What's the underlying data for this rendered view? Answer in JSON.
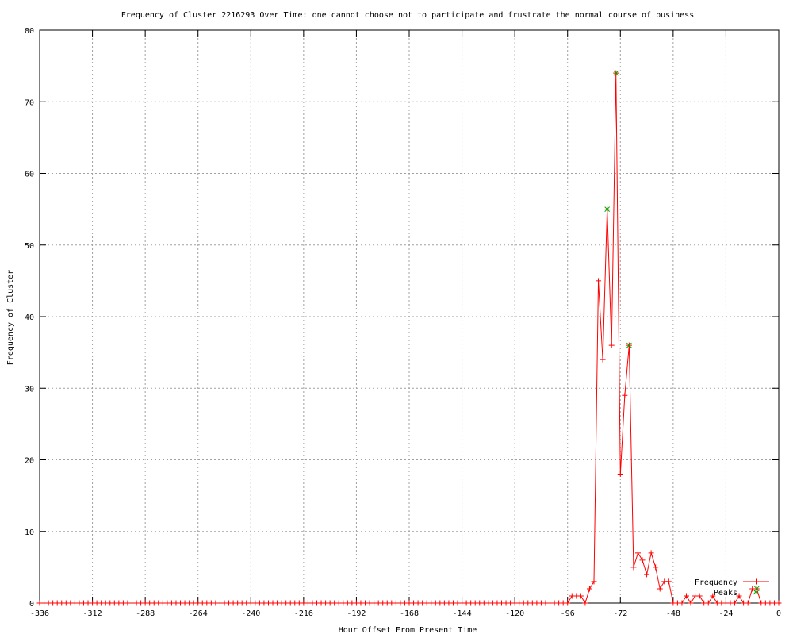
{
  "chart_data": {
    "type": "line",
    "title": "Frequency of Cluster 2216293 Over Time: one cannot choose not to participate and frustrate the normal course of business",
    "xlabel": "Hour Offset From Present Time",
    "ylabel": "Frequency of Cluster",
    "xlim": [
      -336,
      0
    ],
    "ylim": [
      0,
      80
    ],
    "xticks": [
      -336,
      -312,
      -288,
      -264,
      -240,
      -216,
      -192,
      -168,
      -144,
      -120,
      -96,
      -72,
      -48,
      -24,
      0
    ],
    "yticks": [
      0,
      10,
      20,
      30,
      40,
      50,
      60,
      70,
      80
    ],
    "grid": true,
    "legend_position": "bottom-right",
    "series": [
      {
        "name": "Frequency",
        "color": "#ff0000",
        "nonzero": {
          "-94": 1,
          "-92": 1,
          "-90": 1,
          "-86": 2,
          "-84": 3,
          "-82": 45,
          "-80": 34,
          "-78": 55,
          "-76": 36,
          "-74": 74,
          "-72": 18,
          "-70": 29,
          "-68": 36,
          "-66": 5,
          "-64": 7,
          "-62": 6,
          "-60": 4,
          "-58": 7,
          "-56": 5,
          "-54": 2,
          "-52": 3,
          "-50": 3,
          "-42": 1,
          "-38": 1,
          "-36": 1,
          "-30": 1,
          "-18": 1,
          "-12": 2,
          "-10": 2
        },
        "x_start": -336,
        "x_end": 0,
        "x_step": 2
      },
      {
        "name": "Peaks",
        "color": "#00aa00",
        "points": [
          [
            -78,
            55
          ],
          [
            -74,
            74
          ],
          [
            -68,
            36
          ],
          [
            -10,
            2
          ]
        ]
      }
    ]
  }
}
